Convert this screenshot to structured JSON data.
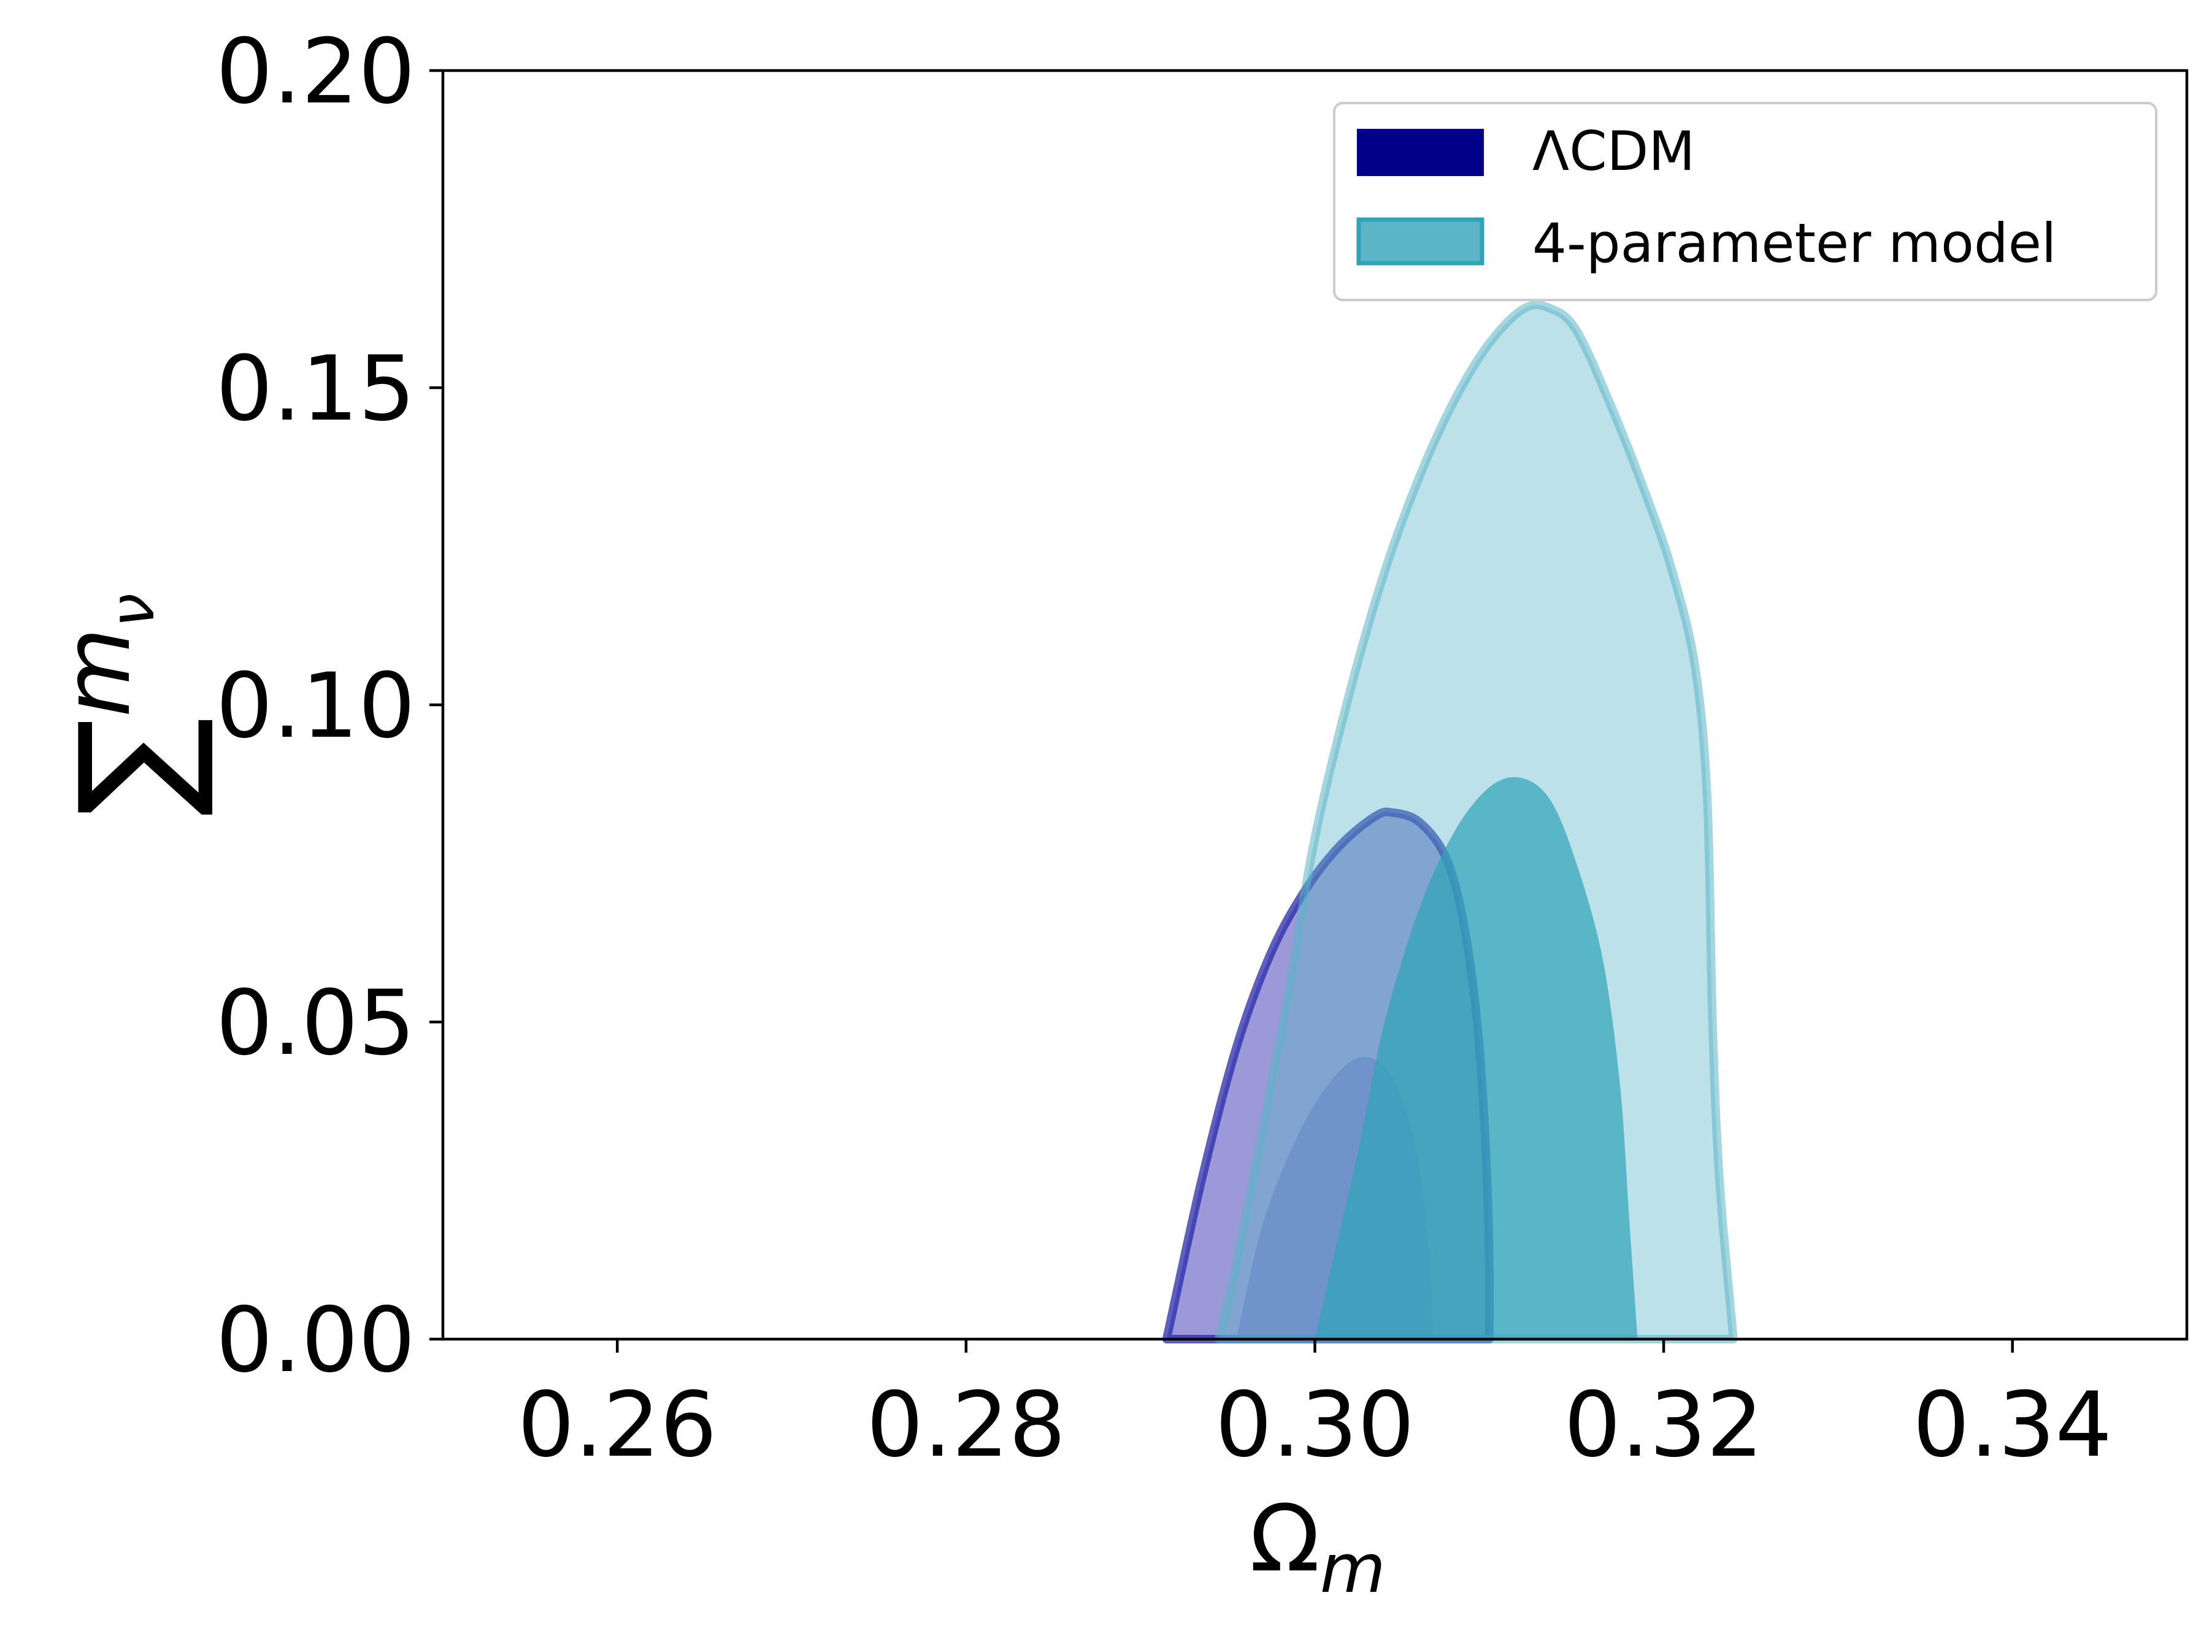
{
  "chart_data": {
    "type": "contour",
    "xlabel": "Ω",
    "xlabel_sub": "m",
    "ylabel": "∑",
    "ylabel_sym": "m",
    "ylabel_sub": "ν",
    "xlim": [
      0.25,
      0.35
    ],
    "ylim": [
      0.0,
      0.2
    ],
    "x_ticks": [
      0.26,
      0.28,
      0.3,
      0.32,
      0.34
    ],
    "x_tick_labels": [
      "0.26",
      "0.28",
      "0.30",
      "0.32",
      "0.34"
    ],
    "y_ticks": [
      0.0,
      0.05,
      0.1,
      0.15,
      0.2
    ],
    "y_tick_labels": [
      "0.00",
      "0.05",
      "0.10",
      "0.15",
      "0.20"
    ],
    "grid": false,
    "legend_position": "top-right",
    "series": [
      {
        "name": "ΛCDM",
        "color": "#00008b",
        "contours": [
          {
            "level": "95%",
            "points": [
              [
                0.2915,
                0.0
              ],
              [
                0.2935,
                0.025
              ],
              [
                0.2955,
                0.046
              ],
              [
                0.2975,
                0.061
              ],
              [
                0.2995,
                0.071
              ],
              [
                0.3015,
                0.078
              ],
              [
                0.3035,
                0.0825
              ],
              [
                0.3045,
                0.083
              ],
              [
                0.306,
                0.0815
              ],
              [
                0.3075,
                0.076
              ],
              [
                0.3085,
                0.066
              ],
              [
                0.3093,
                0.05
              ],
              [
                0.3098,
                0.03
              ],
              [
                0.31,
                0.012
              ],
              [
                0.31,
                0.0
              ]
            ]
          },
          {
            "level": "68%",
            "points": [
              [
                0.2955,
                0.0
              ],
              [
                0.297,
                0.018
              ],
              [
                0.299,
                0.032
              ],
              [
                0.301,
                0.041
              ],
              [
                0.3028,
                0.0445
              ],
              [
                0.3045,
                0.041
              ],
              [
                0.3058,
                0.03
              ],
              [
                0.3065,
                0.015
              ],
              [
                0.3068,
                0.0
              ]
            ]
          }
        ]
      },
      {
        "name": "4-parameter model",
        "color": "#2fa4b8",
        "contours": [
          {
            "level": "95%",
            "points": [
              [
                0.2945,
                0.0
              ],
              [
                0.2955,
                0.012
              ],
              [
                0.297,
                0.033
              ],
              [
                0.2985,
                0.055
              ],
              [
                0.3,
                0.079
              ],
              [
                0.302,
                0.102
              ],
              [
                0.304,
                0.121
              ],
              [
                0.306,
                0.136
              ],
              [
                0.308,
                0.148
              ],
              [
                0.31,
                0.157
              ],
              [
                0.312,
                0.1625
              ],
              [
                0.3135,
                0.1625
              ],
              [
                0.315,
                0.159
              ],
              [
                0.317,
                0.147
              ],
              [
                0.319,
                0.133
              ],
              [
                0.3205,
                0.121
              ],
              [
                0.3218,
                0.106
              ],
              [
                0.3225,
                0.085
              ],
              [
                0.3228,
                0.05
              ],
              [
                0.3232,
                0.025
              ],
              [
                0.324,
                0.0
              ]
            ]
          },
          {
            "level": "68%",
            "points": [
              [
                0.3,
                0.0
              ],
              [
                0.301,
                0.012
              ],
              [
                0.3025,
                0.03
              ],
              [
                0.304,
                0.05
              ],
              [
                0.306,
                0.068
              ],
              [
                0.308,
                0.08
              ],
              [
                0.31,
                0.087
              ],
              [
                0.3118,
                0.0885
              ],
              [
                0.3135,
                0.085
              ],
              [
                0.315,
                0.075
              ],
              [
                0.3165,
                0.06
              ],
              [
                0.3175,
                0.04
              ],
              [
                0.318,
                0.02
              ],
              [
                0.3185,
                0.0
              ]
            ]
          }
        ]
      }
    ]
  }
}
